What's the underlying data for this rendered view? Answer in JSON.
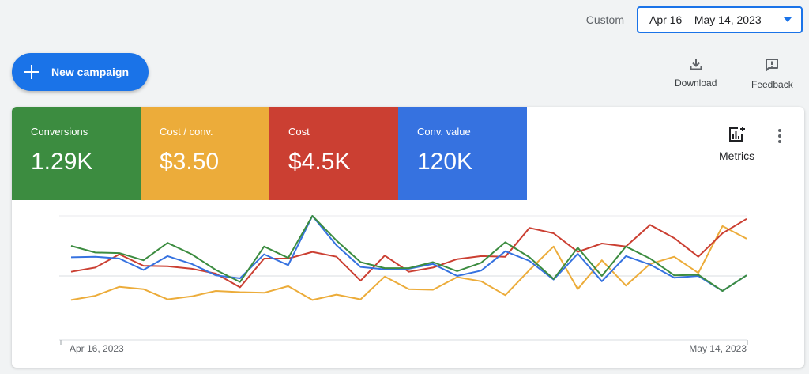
{
  "header": {
    "date_range_label": "Custom",
    "date_range_value": "Apr 16 – May 14, 2023"
  },
  "actions": {
    "new_campaign": "New campaign",
    "download": "Download",
    "feedback": "Feedback"
  },
  "scorecards": [
    {
      "label": "Conversions",
      "value": "1.29K",
      "color": "#3c8c40"
    },
    {
      "label": "Cost / conv.",
      "value": "$3.50",
      "color": "#ecac3a"
    },
    {
      "label": "Cost",
      "value": "$4.5K",
      "color": "#cb3f32"
    },
    {
      "label": "Conv. value",
      "value": "120K",
      "color": "#3672e0"
    }
  ],
  "metrics_button": "Metrics",
  "chart_data": {
    "type": "line",
    "x_start_label": "Apr 16, 2023",
    "x_end_label": "May 14, 2023",
    "points": 29,
    "series": [
      {
        "name": "Conversions",
        "color": "#3c8c40",
        "values": [
          0.5,
          0.39,
          0.38,
          0.26,
          0.55,
          0.36,
          0.1,
          -0.1,
          0.49,
          0.3,
          1.0,
          0.59,
          0.23,
          0.13,
          0.13,
          0.23,
          0.08,
          0.22,
          0.56,
          0.31,
          -0.05,
          0.47,
          0.0,
          0.49,
          0.29,
          0.01,
          0.02,
          -0.25,
          0.01
        ]
      },
      {
        "name": "Cost / conv.",
        "color": "#ecac3a",
        "values": [
          -0.4,
          -0.33,
          -0.18,
          -0.22,
          -0.39,
          -0.34,
          -0.25,
          -0.27,
          -0.28,
          -0.17,
          -0.4,
          -0.31,
          -0.39,
          -0.01,
          -0.22,
          -0.23,
          -0.02,
          -0.09,
          -0.32,
          0.1,
          0.49,
          -0.22,
          0.26,
          -0.16,
          0.2,
          0.32,
          0.05,
          0.83,
          0.62
        ]
      },
      {
        "name": "Cost",
        "color": "#cb3f32",
        "values": [
          0.07,
          0.14,
          0.36,
          0.17,
          0.16,
          0.12,
          0.04,
          -0.19,
          0.29,
          0.29,
          0.4,
          0.32,
          -0.08,
          0.34,
          0.07,
          0.14,
          0.28,
          0.33,
          0.32,
          0.8,
          0.71,
          0.4,
          0.54,
          0.49,
          0.85,
          0.63,
          0.32,
          0.71,
          0.95
        ]
      },
      {
        "name": "Conv. value",
        "color": "#3672e0",
        "values": [
          0.31,
          0.32,
          0.29,
          0.1,
          0.33,
          0.2,
          0.01,
          -0.04,
          0.36,
          0.18,
          1.0,
          0.51,
          0.15,
          0.11,
          0.12,
          0.2,
          0.0,
          0.09,
          0.41,
          0.25,
          -0.06,
          0.37,
          -0.09,
          0.33,
          0.19,
          -0.03,
          0.0,
          -0.25,
          0.01
        ]
      }
    ]
  }
}
